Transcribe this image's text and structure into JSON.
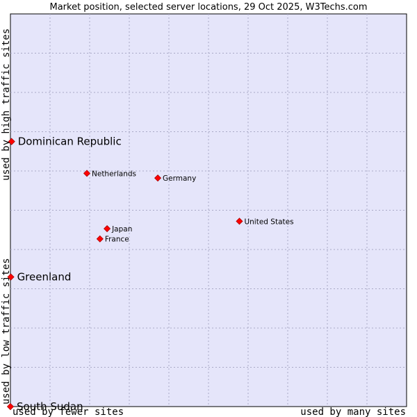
{
  "chart_data": {
    "type": "scatter",
    "title": "Market position, selected server locations, 29 Oct 2025, W3Techs.com",
    "xlabel_left": "used by fewer sites",
    "xlabel_right": "used by many sites",
    "ylabel_bottom": "used by low traffic sites",
    "ylabel_top": "used by high traffic sites",
    "xlim": [
      0,
      100
    ],
    "ylim": [
      0,
      100
    ],
    "grid": true,
    "points": [
      {
        "name": "Dominican Republic",
        "x": 0.3,
        "y": 67.5,
        "emphasis": true
      },
      {
        "name": "Netherlands",
        "x": 19.3,
        "y": 59.4,
        "emphasis": false
      },
      {
        "name": "Germany",
        "x": 37.2,
        "y": 58.2,
        "emphasis": false
      },
      {
        "name": "United States",
        "x": 57.8,
        "y": 47.2,
        "emphasis": false
      },
      {
        "name": "Japan",
        "x": 24.4,
        "y": 45.3,
        "emphasis": false
      },
      {
        "name": "France",
        "x": 22.6,
        "y": 42.7,
        "emphasis": false
      },
      {
        "name": "Greenland",
        "x": 0.1,
        "y": 33.0,
        "emphasis": true
      },
      {
        "name": "South Sudan",
        "x": 0.0,
        "y": 0.0,
        "emphasis": true
      }
    ]
  },
  "colors": {
    "plot_background": "#e5e5fa",
    "grid": "#a9a9c6",
    "point": "#ff0000",
    "point_border": "#aa0000"
  }
}
